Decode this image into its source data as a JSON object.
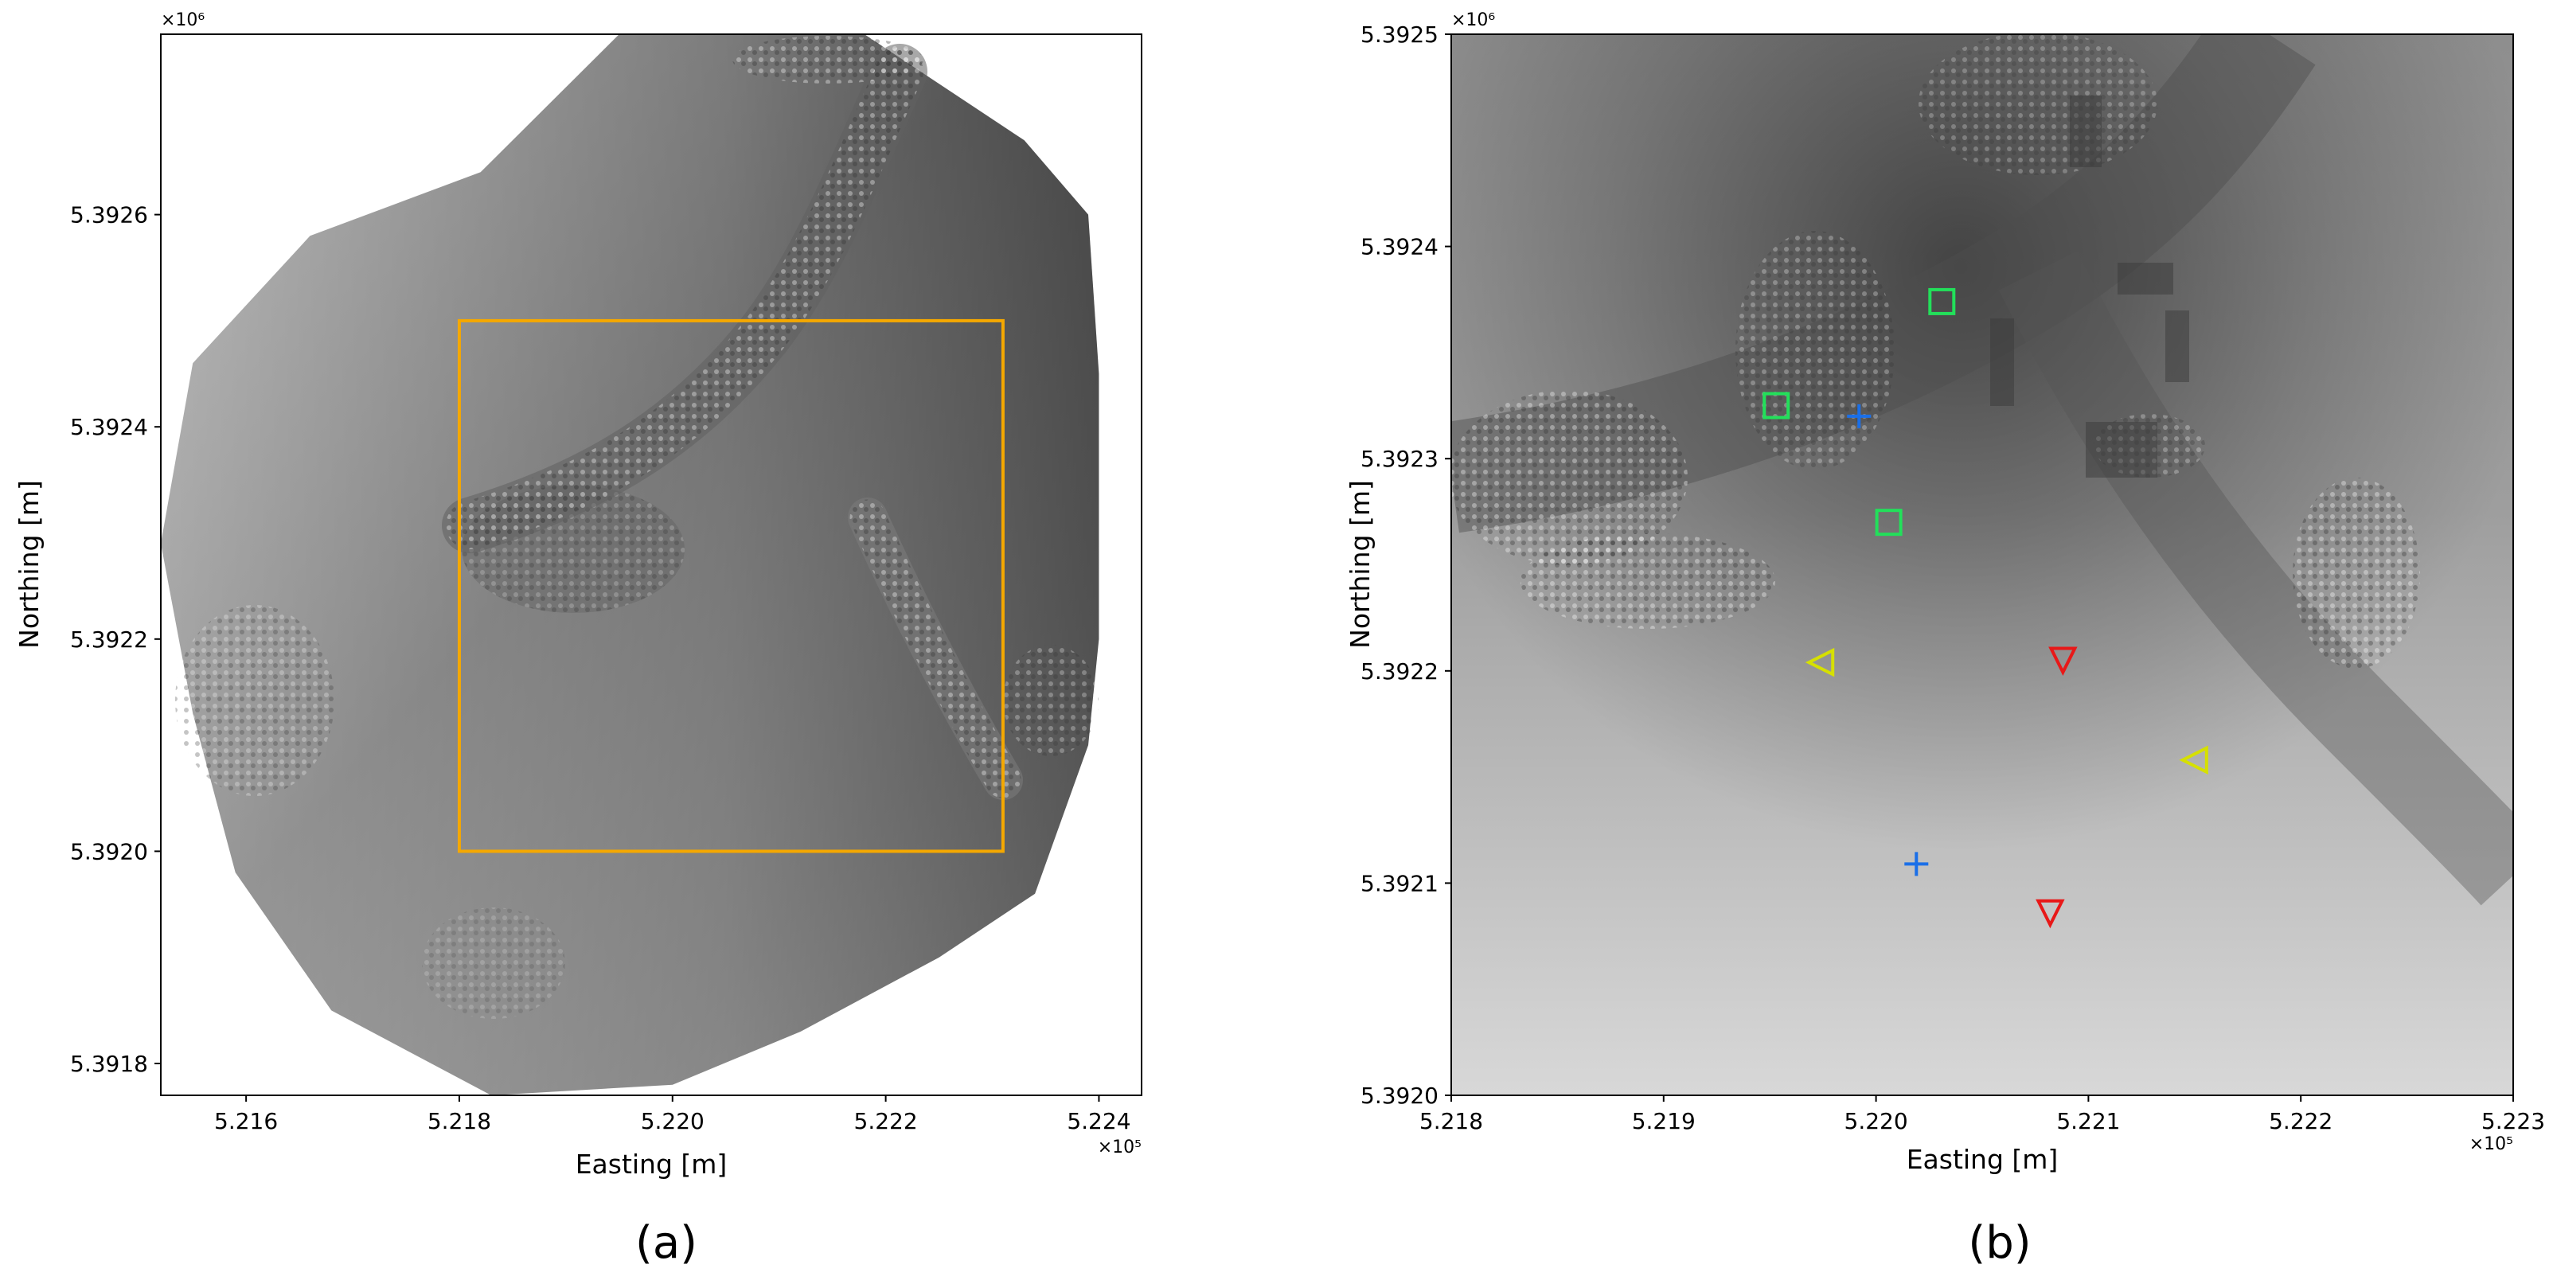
{
  "panels": [
    {
      "id": "a",
      "caption": "(a)",
      "xlabel": "Easting [m]",
      "ylabel": "Northing [m]",
      "x_multiplier": "×10⁵",
      "y_multiplier": "×10⁶",
      "xlim": [
        5.2152,
        5.2244
      ],
      "ylim": [
        5.39177,
        5.39277
      ],
      "xticks": [
        {
          "value": 5.216,
          "label": "5.216"
        },
        {
          "value": 5.218,
          "label": "5.218"
        },
        {
          "value": 5.22,
          "label": "5.220"
        },
        {
          "value": 5.222,
          "label": "5.222"
        },
        {
          "value": 5.224,
          "label": "5.224"
        }
      ],
      "yticks": [
        {
          "value": 5.3918,
          "label": "5.3918"
        },
        {
          "value": 5.392,
          "label": "5.3920"
        },
        {
          "value": 5.3922,
          "label": "5.3922"
        },
        {
          "value": 5.3924,
          "label": "5.3924"
        },
        {
          "value": 5.3926,
          "label": "5.3926"
        }
      ],
      "survey_boundary": [
        [
          5.2195,
          5.39277
        ],
        [
          5.2218,
          5.39277
        ],
        [
          5.2233,
          5.39267
        ],
        [
          5.2239,
          5.3926
        ],
        [
          5.224,
          5.39245
        ],
        [
          5.224,
          5.3922
        ],
        [
          5.2239,
          5.3921
        ],
        [
          5.2234,
          5.39196
        ],
        [
          5.2225,
          5.3919
        ],
        [
          5.2212,
          5.39183
        ],
        [
          5.22,
          5.39178
        ],
        [
          5.2183,
          5.39177
        ],
        [
          5.2168,
          5.39185
        ],
        [
          5.2159,
          5.39198
        ],
        [
          5.2155,
          5.39213
        ],
        [
          5.2152,
          5.39229
        ],
        [
          5.2155,
          5.39246
        ],
        [
          5.2166,
          5.39258
        ],
        [
          5.2182,
          5.39264
        ]
      ],
      "extent_box": {
        "x": [
          5.218,
          5.2231
        ],
        "y": [
          5.392,
          5.3925
        ],
        "color": "#f5a800"
      }
    },
    {
      "id": "b",
      "caption": "(b)",
      "xlabel": "Easting [m]",
      "ylabel": "Northing [m]",
      "x_multiplier": "×10⁵",
      "y_multiplier": "×10⁶",
      "xlim": [
        5.218,
        5.223
      ],
      "ylim": [
        5.392,
        5.3925
      ],
      "xticks": [
        {
          "value": 5.218,
          "label": "5.218"
        },
        {
          "value": 5.219,
          "label": "5.219"
        },
        {
          "value": 5.22,
          "label": "5.220"
        },
        {
          "value": 5.221,
          "label": "5.221"
        },
        {
          "value": 5.222,
          "label": "5.222"
        },
        {
          "value": 5.223,
          "label": "5.223"
        }
      ],
      "yticks": [
        {
          "value": 5.392,
          "label": "5.3920"
        },
        {
          "value": 5.3921,
          "label": "5.3921"
        },
        {
          "value": 5.3922,
          "label": "5.3922"
        },
        {
          "value": 5.3923,
          "label": "5.3923"
        },
        {
          "value": 5.3924,
          "label": "5.3924"
        },
        {
          "value": 5.3925,
          "label": "5.3925"
        }
      ],
      "markers": [
        {
          "shape": "square",
          "color": "#22e05a",
          "x": 5.21953,
          "y": 5.392325
        },
        {
          "shape": "square",
          "color": "#22e05a",
          "x": 5.22031,
          "y": 5.392374
        },
        {
          "shape": "square",
          "color": "#22e05a",
          "x": 5.22006,
          "y": 5.39227
        },
        {
          "shape": "plus",
          "color": "#1a6fe8",
          "x": 5.21992,
          "y": 5.39232
        },
        {
          "shape": "plus",
          "color": "#1a6fe8",
          "x": 5.22019,
          "y": 5.392109
        },
        {
          "shape": "triangle-left",
          "color": "#d6e000",
          "x": 5.21974,
          "y": 5.392204
        },
        {
          "shape": "triangle-left",
          "color": "#d6e000",
          "x": 5.2215,
          "y": 5.392158
        },
        {
          "shape": "triangle-down",
          "color": "#e81818",
          "x": 5.22088,
          "y": 5.392205
        },
        {
          "shape": "triangle-down",
          "color": "#e81818",
          "x": 5.22082,
          "y": 5.392086
        }
      ]
    }
  ]
}
